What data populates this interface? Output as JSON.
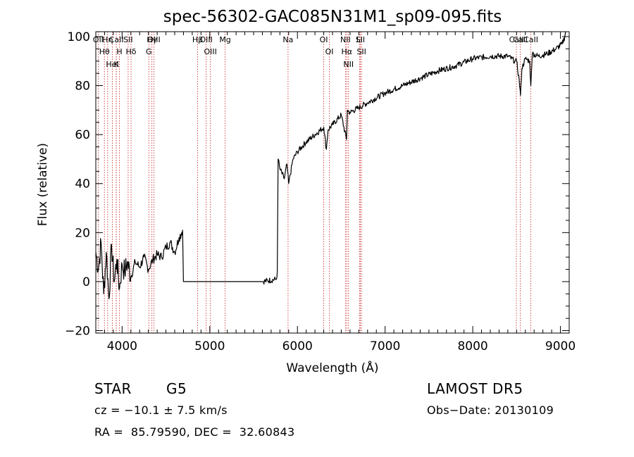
{
  "chart_data": {
    "type": "line",
    "title": "spec-56302-GAC085N31M1_sp09-095.fits",
    "xlabel": "Wavelength (Å)",
    "ylabel": "Flux (relative)",
    "xlim": [
      3700,
      9100
    ],
    "ylim": [
      -21,
      102
    ],
    "xticks": [
      4000,
      5000,
      6000,
      7000,
      8000,
      9000
    ],
    "yticks": [
      -20,
      0,
      20,
      40,
      60,
      80,
      100
    ],
    "grid": false,
    "series": [
      {
        "x": [
          3700,
          3730,
          3760,
          3790,
          3820,
          3850,
          3880,
          3910,
          3940,
          3970,
          4000,
          4030,
          4060,
          4100,
          4150,
          4200,
          4250,
          4300,
          4350,
          4400,
          4450,
          4500,
          4550,
          4600,
          4650,
          4680,
          4690,
          4700,
          5000,
          5300,
          5600,
          5760,
          5770,
          5780,
          5800,
          5850,
          5880,
          5900,
          5950,
          6000,
          6100,
          6200,
          6300,
          6330,
          6350,
          6400,
          6500,
          6560,
          6570,
          6600,
          6700,
          6800,
          7000,
          7200,
          7400,
          7600,
          7800,
          8000,
          8200,
          8400,
          8480,
          8500,
          8530,
          8545,
          8560,
          8600,
          8650,
          8662,
          8680,
          8750,
          8850,
          8950,
          9020,
          9050,
          9060
        ],
        "y": [
          12,
          5,
          16,
          -5,
          12,
          -7,
          15,
          0,
          9,
          -3,
          7,
          4,
          8,
          2,
          8,
          6,
          10,
          5,
          9,
          11,
          10,
          14,
          16,
          12,
          18,
          20,
          21,
          0,
          0,
          0,
          0,
          1,
          4,
          50,
          46,
          42,
          48,
          40,
          50,
          53,
          57,
          60,
          63,
          54,
          62,
          64,
          68,
          58,
          70,
          69,
          71,
          73,
          77,
          80,
          83,
          86,
          88,
          91,
          92,
          92,
          90,
          90,
          82,
          76,
          87,
          91,
          90,
          80,
          93,
          92,
          93,
          95,
          97,
          100,
          103
        ]
      }
    ],
    "line_markers": [
      {
        "label": "CaII",
        "wave": 3934
      },
      {
        "label": "H",
        "wave": 3969
      },
      {
        "label": "OII",
        "wave": 3727
      },
      {
        "label": "Hη",
        "wave": 3835
      },
      {
        "label": "Hθ",
        "wave": 3798
      },
      {
        "label": "K",
        "wave": 3934
      },
      {
        "label": "HeI",
        "wave": 3889
      },
      {
        "label": "SII",
        "wave": 4069
      },
      {
        "label": "Hδ",
        "wave": 4102
      },
      {
        "label": "Hγ",
        "wave": 4340
      },
      {
        "label": "G",
        "wave": 4305
      },
      {
        "label": "OIII",
        "wave": 4363
      },
      {
        "label": "Hβ",
        "wave": 4861
      },
      {
        "label": "OIII",
        "wave": 4959
      },
      {
        "label": "OIII",
        "wave": 5007
      },
      {
        "label": "Mg",
        "wave": 5175
      },
      {
        "label": "Na",
        "wave": 5893
      },
      {
        "label": "OI",
        "wave": 6300
      },
      {
        "label": "OI",
        "wave": 6364
      },
      {
        "label": "NII",
        "wave": 6548
      },
      {
        "label": "Hα",
        "wave": 6563
      },
      {
        "label": "NII",
        "wave": 6583
      },
      {
        "label": "Li",
        "wave": 6708
      },
      {
        "label": "SII",
        "wave": 6717
      },
      {
        "label": "SII",
        "wave": 6731
      },
      {
        "label": "CaII",
        "wave": 8498
      },
      {
        "label": "CaII",
        "wave": 8542
      },
      {
        "label": "CaII",
        "wave": 8662
      }
    ],
    "marker_color": "#c81e1e"
  },
  "info": {
    "object_type": "STAR",
    "subclass": "G5",
    "survey": "LAMOST DR5",
    "cz": "cz = −10.1 ± 7.5 km/s",
    "obs_date": "Obs−Date: 20130109",
    "coords": "RA =  85.79590, DEC =  32.60843"
  }
}
